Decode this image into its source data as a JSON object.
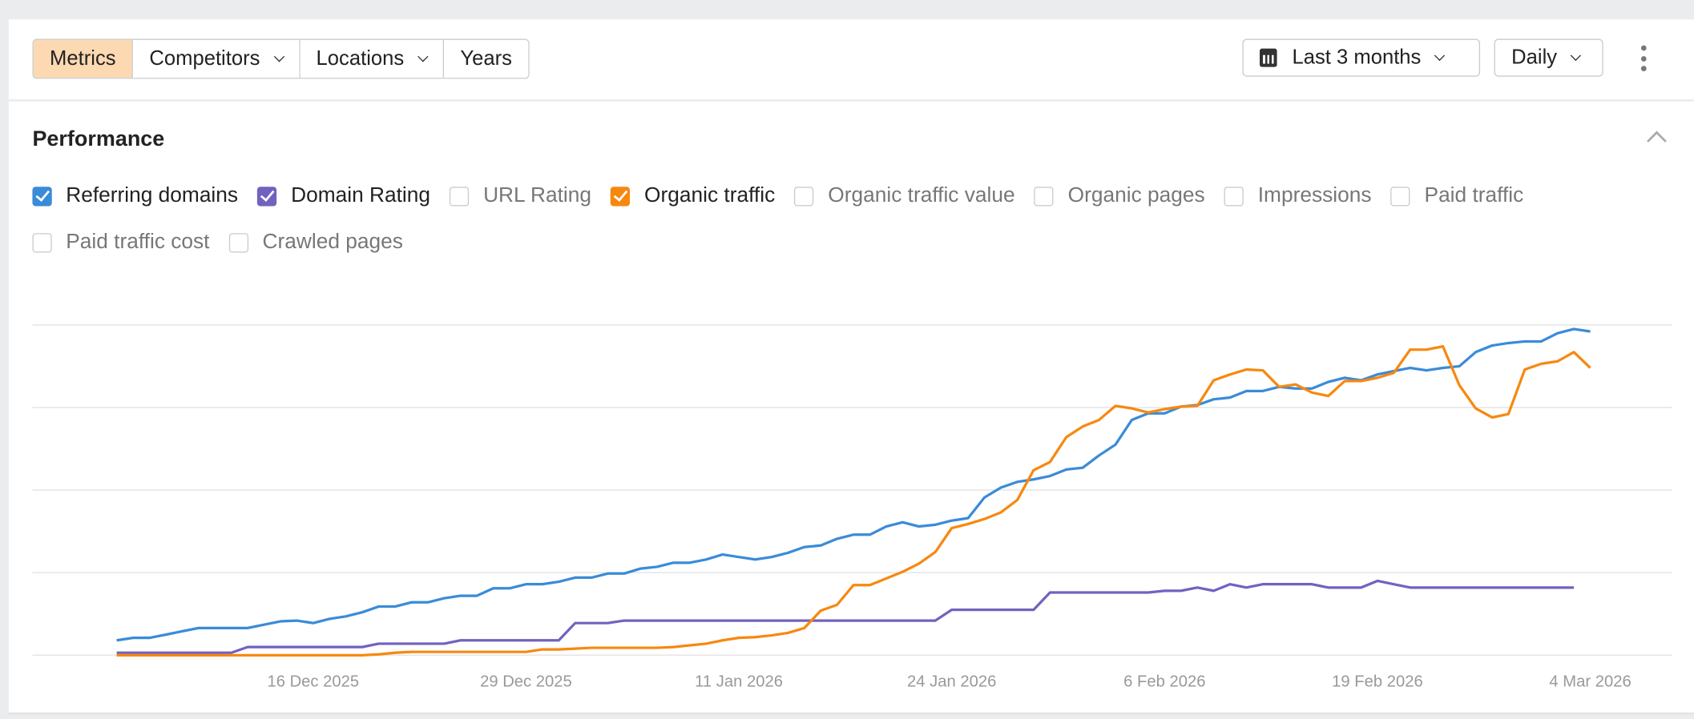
{
  "toolbar": {
    "segments": [
      {
        "label": "Metrics",
        "active": true
      },
      {
        "label": "Competitors",
        "dropdown": true
      },
      {
        "label": "Locations",
        "dropdown": true
      },
      {
        "label": "Years"
      }
    ],
    "date_range": "Last 3 months",
    "date_icon": "calendar-icon",
    "interval": "Daily",
    "more_icon": "kebab-menu-icon"
  },
  "section": {
    "title": "Performance",
    "collapse_icon": "chevron-up-icon"
  },
  "metrics": [
    {
      "label": "Referring domains",
      "checked": true,
      "color": "#3a8bd8"
    },
    {
      "label": "Domain Rating",
      "checked": true,
      "color": "#7262bf"
    },
    {
      "label": "URL Rating",
      "checked": false
    },
    {
      "label": "Organic traffic",
      "checked": true,
      "color": "#f7880f"
    },
    {
      "label": "Organic traffic value",
      "checked": false
    },
    {
      "label": "Organic pages",
      "checked": false
    },
    {
      "label": "Impressions",
      "checked": false
    },
    {
      "label": "Paid traffic",
      "checked": false
    },
    {
      "label": "Paid traffic cost",
      "checked": false
    },
    {
      "label": "Crawled pages",
      "checked": false
    }
  ],
  "chart_data": {
    "type": "line",
    "grid": true,
    "y_axis_labels_shown": false,
    "ylim": [
      0,
      4
    ],
    "xlim": [
      "4 Dec 2025",
      "4 Mar 2026"
    ],
    "x_tick_labels": [
      "16 Dec 2025",
      "29 Dec 2025",
      "11 Jan 2026",
      "24 Jan 2026",
      "6 Feb 2026",
      "19 Feb 2026",
      "4 Mar 2026"
    ],
    "x": [
      "2025-12-04",
      "2025-12-05",
      "2025-12-06",
      "2025-12-07",
      "2025-12-08",
      "2025-12-09",
      "2025-12-10",
      "2025-12-11",
      "2025-12-12",
      "2025-12-13",
      "2025-12-14",
      "2025-12-15",
      "2025-12-16",
      "2025-12-17",
      "2025-12-18",
      "2025-12-19",
      "2025-12-20",
      "2025-12-21",
      "2025-12-22",
      "2025-12-23",
      "2025-12-24",
      "2025-12-25",
      "2025-12-26",
      "2025-12-27",
      "2025-12-28",
      "2025-12-29",
      "2025-12-30",
      "2025-12-31",
      "2026-01-01",
      "2026-01-02",
      "2026-01-03",
      "2026-01-04",
      "2026-01-05",
      "2026-01-06",
      "2026-01-07",
      "2026-01-08",
      "2026-01-09",
      "2026-01-10",
      "2026-01-11",
      "2026-01-12",
      "2026-01-13",
      "2026-01-14",
      "2026-01-15",
      "2026-01-16",
      "2026-01-17",
      "2026-01-18",
      "2026-01-19",
      "2026-01-20",
      "2026-01-21",
      "2026-01-22",
      "2026-01-23",
      "2026-01-24",
      "2026-01-25",
      "2026-01-26",
      "2026-01-27",
      "2026-01-28",
      "2026-01-29",
      "2026-01-30",
      "2026-01-31",
      "2026-02-01",
      "2026-02-02",
      "2026-02-03",
      "2026-02-04",
      "2026-02-05",
      "2026-02-06",
      "2026-02-07",
      "2026-02-08",
      "2026-02-09",
      "2026-02-10",
      "2026-02-11",
      "2026-02-12",
      "2026-02-13",
      "2026-02-14",
      "2026-02-15",
      "2026-02-16",
      "2026-02-17",
      "2026-02-18",
      "2026-02-19",
      "2026-02-20",
      "2026-02-21",
      "2026-02-22",
      "2026-02-23",
      "2026-02-24",
      "2026-02-25",
      "2026-02-26",
      "2026-02-27",
      "2026-02-28",
      "2026-03-01",
      "2026-03-02",
      "2026-03-03",
      "2026-03-04"
    ],
    "series": [
      {
        "name": "Referring domains",
        "color": "#3a8bd8",
        "values": [
          0.18,
          0.21,
          0.21,
          0.25,
          0.29,
          0.33,
          0.33,
          0.33,
          0.33,
          0.37,
          0.41,
          0.42,
          0.39,
          0.44,
          0.47,
          0.52,
          0.59,
          0.59,
          0.64,
          0.64,
          0.69,
          0.72,
          0.72,
          0.81,
          0.81,
          0.86,
          0.86,
          0.89,
          0.94,
          0.94,
          0.99,
          0.99,
          1.05,
          1.07,
          1.12,
          1.12,
          1.16,
          1.22,
          1.19,
          1.16,
          1.19,
          1.24,
          1.31,
          1.33,
          1.41,
          1.46,
          1.46,
          1.56,
          1.61,
          1.56,
          1.58,
          1.63,
          1.66,
          1.91,
          2.03,
          2.1,
          2.13,
          2.17,
          2.25,
          2.27,
          2.42,
          2.55,
          2.85,
          2.93,
          2.93,
          3.01,
          3.03,
          3.1,
          3.12,
          3.2,
          3.2,
          3.25,
          3.23,
          3.23,
          3.31,
          3.36,
          3.33,
          3.4,
          3.44,
          3.48,
          3.45,
          3.48,
          3.5,
          3.67,
          3.75,
          3.78,
          3.8,
          3.8,
          3.9,
          3.95,
          3.92
        ]
      },
      {
        "name": "Domain Rating",
        "color": "#7262bf",
        "values": [
          0.03,
          0.03,
          0.03,
          0.03,
          0.03,
          0.03,
          0.03,
          0.03,
          0.1,
          0.1,
          0.1,
          0.1,
          0.1,
          0.1,
          0.1,
          0.1,
          0.14,
          0.14,
          0.14,
          0.14,
          0.14,
          0.18,
          0.18,
          0.18,
          0.18,
          0.18,
          0.18,
          0.18,
          0.39,
          0.39,
          0.39,
          0.42,
          0.42,
          0.42,
          0.42,
          0.42,
          0.42,
          0.42,
          0.42,
          0.42,
          0.42,
          0.42,
          0.42,
          0.42,
          0.42,
          0.42,
          0.42,
          0.42,
          0.42,
          0.42,
          0.42,
          0.55,
          0.55,
          0.55,
          0.55,
          0.55,
          0.55,
          0.76,
          0.76,
          0.76,
          0.76,
          0.76,
          0.76,
          0.76,
          0.78,
          0.78,
          0.82,
          0.78,
          0.86,
          0.82,
          0.86,
          0.86,
          0.86,
          0.86,
          0.82,
          0.82,
          0.82,
          0.9,
          0.86,
          0.82,
          0.82,
          0.82,
          0.82,
          0.82,
          0.82,
          0.82,
          0.82,
          0.82,
          0.82,
          0.82,
          null
        ]
      },
      {
        "name": "Organic traffic",
        "color": "#f7880f",
        "values": [
          0,
          0,
          0,
          0,
          0,
          0,
          0,
          0,
          0,
          0,
          0,
          0,
          0,
          0,
          0,
          0,
          0.01,
          0.03,
          0.04,
          0.04,
          0.04,
          0.04,
          0.04,
          0.04,
          0.04,
          0.04,
          0.07,
          0.07,
          0.08,
          0.09,
          0.09,
          0.09,
          0.09,
          0.09,
          0.1,
          0.12,
          0.14,
          0.18,
          0.21,
          0.22,
          0.24,
          0.27,
          0.33,
          0.54,
          0.61,
          0.85,
          0.85,
          0.93,
          1.01,
          1.11,
          1.25,
          1.54,
          1.59,
          1.65,
          1.73,
          1.88,
          2.24,
          2.34,
          2.64,
          2.77,
          2.85,
          3.02,
          2.99,
          2.94,
          2.98,
          3.01,
          3.02,
          3.33,
          3.4,
          3.46,
          3.45,
          3.25,
          3.28,
          3.18,
          3.14,
          3.32,
          3.32,
          3.36,
          3.42,
          3.7,
          3.7,
          3.74,
          3.27,
          2.99,
          2.88,
          2.92,
          3.46,
          3.53,
          3.56,
          3.67,
          3.48
        ]
      }
    ]
  }
}
